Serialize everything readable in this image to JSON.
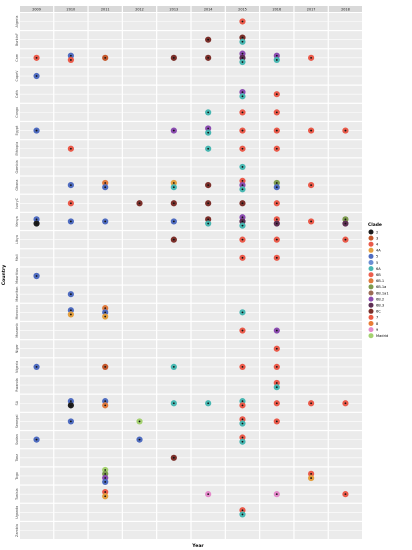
{
  "chart_data": {
    "type": "scatter",
    "layout": "faceted dot plot, one column per year, one row per country",
    "xlabel": "Year",
    "ylabel": "Country",
    "years": [
      "2009",
      "2010",
      "2011",
      "2012",
      "2013",
      "2014",
      "2015",
      "2016",
      "2017",
      "2018"
    ],
    "countries": [
      "Algeria",
      "BurkinF",
      "Cam",
      "CapeV",
      "Cath",
      "Congo",
      "Egypt",
      "Ethiopia",
      "Gambia",
      "Ghana",
      "IvoryC",
      "Kenya",
      "Libya",
      "Mali",
      "Mauritius",
      "Mauritan",
      "Morocco",
      "Mozamb",
      "Niger",
      "Nigeria",
      "Rwanda",
      "SA",
      "Senegal",
      "Sudan",
      "Tanz",
      "Togo",
      "Tunisia",
      "Uganda",
      "Zambia"
    ],
    "legend": {
      "title": "Clade",
      "position": "right",
      "entries": [
        {
          "label": "2",
          "color": "#1c1c1c"
        },
        {
          "label": "3",
          "color": "#c3572b"
        },
        {
          "label": "4",
          "color": "#ea5a4a"
        },
        {
          "label": "4A",
          "color": "#e4a03f"
        },
        {
          "label": "5",
          "color": "#4f6cc0"
        },
        {
          "label": "5",
          "color": "#6a8ed4"
        },
        {
          "label": "6A",
          "color": "#48b7b2"
        },
        {
          "label": "6B",
          "color": "#ec5f4e"
        },
        {
          "label": "6B.1",
          "color": "#e07a3d"
        },
        {
          "label": "6B.1a",
          "color": "#7d9b4f"
        },
        {
          "label": "6B.1a1",
          "color": "#9b6b54"
        },
        {
          "label": "6B.2",
          "color": "#8b4cb0"
        },
        {
          "label": "6B.3",
          "color": "#5d2e52"
        },
        {
          "label": "6C",
          "color": "#7b2f2a"
        },
        {
          "label": "7",
          "color": "#ed5b44"
        },
        {
          "label": "8",
          "color": "#e97d36"
        },
        {
          "label": "9",
          "color": "#e48aca"
        },
        {
          "label": "Madrid",
          "color": "#a4d170"
        }
      ]
    },
    "points": [
      {
        "country": "Algeria",
        "year": "2015",
        "clades": [
          "4"
        ]
      },
      {
        "country": "BurkinF",
        "year": "2014",
        "clades": [
          "6C"
        ]
      },
      {
        "country": "BurkinF",
        "year": "2015",
        "clades": [
          "6C",
          "6A"
        ]
      },
      {
        "country": "Cam",
        "year": "2010",
        "clades": [
          "5",
          "4"
        ]
      },
      {
        "country": "Cam",
        "year": "2011",
        "clades": [
          "3"
        ]
      },
      {
        "country": "Cam",
        "year": "2013",
        "clades": [
          "6C"
        ]
      },
      {
        "country": "Cam",
        "year": "2014",
        "clades": [
          "6C"
        ]
      },
      {
        "country": "Cam",
        "year": "2015",
        "clades": [
          "6B.2",
          "6B.3",
          "6A"
        ]
      },
      {
        "country": "Cam",
        "year": "2016",
        "clades": [
          "6B.2",
          "6A"
        ]
      },
      {
        "country": "Cam",
        "year": "2017",
        "clades": [
          "4"
        ]
      },
      {
        "country": "Cam",
        "year": "2009",
        "clades": [
          "4"
        ]
      },
      {
        "country": "CapeV",
        "year": "2009",
        "clades": [
          "5"
        ]
      },
      {
        "country": "Cath",
        "year": "2015",
        "clades": [
          "6B.2",
          "6A"
        ]
      },
      {
        "country": "Cath",
        "year": "2016",
        "clades": [
          "4"
        ]
      },
      {
        "country": "Congo",
        "year": "2014",
        "clades": [
          "6A"
        ]
      },
      {
        "country": "Congo",
        "year": "2015",
        "clades": [
          "4"
        ]
      },
      {
        "country": "Congo",
        "year": "2016",
        "clades": [
          "4"
        ]
      },
      {
        "country": "Egypt",
        "year": "2009",
        "clades": [
          "5"
        ]
      },
      {
        "country": "Egypt",
        "year": "2013",
        "clades": [
          "6B.2"
        ]
      },
      {
        "country": "Egypt",
        "year": "2014",
        "clades": [
          "6B.2",
          "6A"
        ]
      },
      {
        "country": "Egypt",
        "year": "2015",
        "clades": [
          "4"
        ]
      },
      {
        "country": "Egypt",
        "year": "2016",
        "clades": [
          "4"
        ]
      },
      {
        "country": "Egypt",
        "year": "2017",
        "clades": [
          "4"
        ]
      },
      {
        "country": "Egypt",
        "year": "2018",
        "clades": [
          "4"
        ]
      },
      {
        "country": "Ethiopia",
        "year": "2010",
        "clades": [
          "4"
        ]
      },
      {
        "country": "Ethiopia",
        "year": "2014",
        "clades": [
          "6A"
        ]
      },
      {
        "country": "Ethiopia",
        "year": "2015",
        "clades": [
          "4"
        ]
      },
      {
        "country": "Ethiopia",
        "year": "2016",
        "clades": [
          "4"
        ]
      },
      {
        "country": "Gambia",
        "year": "2015",
        "clades": [
          "6A"
        ]
      },
      {
        "country": "Ghana",
        "year": "2010",
        "clades": [
          "5"
        ]
      },
      {
        "country": "Ghana",
        "year": "2011",
        "clades": [
          "6B.1",
          "5"
        ]
      },
      {
        "country": "Ghana",
        "year": "2013",
        "clades": [
          "4A",
          "6A"
        ]
      },
      {
        "country": "Ghana",
        "year": "2014",
        "clades": [
          "6C"
        ]
      },
      {
        "country": "Ghana",
        "year": "2015",
        "clades": [
          "4",
          "6B.2",
          "6A"
        ]
      },
      {
        "country": "Ghana",
        "year": "2016",
        "clades": [
          "6B.1a",
          "5"
        ]
      },
      {
        "country": "Ghana",
        "year": "2017",
        "clades": [
          "4"
        ]
      },
      {
        "country": "IvoryC",
        "year": "2010",
        "clades": [
          "4"
        ]
      },
      {
        "country": "IvoryC",
        "year": "2012",
        "clades": [
          "6C"
        ]
      },
      {
        "country": "IvoryC",
        "year": "2013",
        "clades": [
          "6C"
        ]
      },
      {
        "country": "IvoryC",
        "year": "2014",
        "clades": [
          "6C"
        ]
      },
      {
        "country": "IvoryC",
        "year": "2015",
        "clades": [
          "6C"
        ]
      },
      {
        "country": "IvoryC",
        "year": "2016",
        "clades": [
          "4"
        ]
      },
      {
        "country": "Kenya",
        "year": "2009",
        "clades": [
          "5",
          "2"
        ]
      },
      {
        "country": "Kenya",
        "year": "2010",
        "clades": [
          "5"
        ]
      },
      {
        "country": "Kenya",
        "year": "2011",
        "clades": [
          "5"
        ]
      },
      {
        "country": "Kenya",
        "year": "2013",
        "clades": [
          "5"
        ]
      },
      {
        "country": "Kenya",
        "year": "2014",
        "clades": [
          "6C",
          "6A"
        ]
      },
      {
        "country": "Kenya",
        "year": "2015",
        "clades": [
          "6B.2",
          "6B.3",
          "6A"
        ]
      },
      {
        "country": "Kenya",
        "year": "2016",
        "clades": [
          "4",
          "6B.3"
        ]
      },
      {
        "country": "Kenya",
        "year": "2017",
        "clades": [
          "4"
        ]
      },
      {
        "country": "Kenya",
        "year": "2018",
        "clades": [
          "6B.1a",
          "6B.3"
        ]
      },
      {
        "country": "Libya",
        "year": "2013",
        "clades": [
          "6C"
        ]
      },
      {
        "country": "Libya",
        "year": "2015",
        "clades": [
          "4"
        ]
      },
      {
        "country": "Libya",
        "year": "2016",
        "clades": [
          "4"
        ]
      },
      {
        "country": "Libya",
        "year": "2018",
        "clades": [
          "4"
        ]
      },
      {
        "country": "Mali",
        "year": "2015",
        "clades": [
          "4"
        ]
      },
      {
        "country": "Mali",
        "year": "2016",
        "clades": [
          "4"
        ]
      },
      {
        "country": "Mauritius",
        "year": "2009",
        "clades": [
          "5"
        ]
      },
      {
        "country": "Mauritan",
        "year": "2010",
        "clades": [
          "5"
        ]
      },
      {
        "country": "Morocco",
        "year": "2010",
        "clades": [
          "5",
          "4A"
        ]
      },
      {
        "country": "Morocco",
        "year": "2011",
        "clades": [
          "6B.1",
          "5",
          "4A"
        ]
      },
      {
        "country": "Morocco",
        "year": "2015",
        "clades": [
          "6A"
        ]
      },
      {
        "country": "Mozamb",
        "year": "2015",
        "clades": [
          "4"
        ]
      },
      {
        "country": "Mozamb",
        "year": "2016",
        "clades": [
          "6B.2"
        ]
      },
      {
        "country": "Niger",
        "year": "2016",
        "clades": [
          "4"
        ]
      },
      {
        "country": "Nigeria",
        "year": "2009",
        "clades": [
          "5"
        ]
      },
      {
        "country": "Nigeria",
        "year": "2011",
        "clades": [
          "3"
        ]
      },
      {
        "country": "Nigeria",
        "year": "2013",
        "clades": [
          "6A"
        ]
      },
      {
        "country": "Nigeria",
        "year": "2015",
        "clades": [
          "4"
        ]
      },
      {
        "country": "Nigeria",
        "year": "2016",
        "clades": [
          "4"
        ]
      },
      {
        "country": "Mauritius",
        "year": "2009",
        "clades": [
          "5"
        ]
      },
      {
        "country": "Rwanda",
        "year": "2016",
        "clades": [
          "4",
          "6A"
        ]
      },
      {
        "country": "SA",
        "year": "2010",
        "clades": [
          "5",
          "2"
        ]
      },
      {
        "country": "SA",
        "year": "2011",
        "clades": [
          "5",
          "6B.1"
        ]
      },
      {
        "country": "SA",
        "year": "2013",
        "clades": [
          "6A"
        ]
      },
      {
        "country": "SA",
        "year": "2014",
        "clades": [
          "6A"
        ]
      },
      {
        "country": "SA",
        "year": "2015",
        "clades": [
          "6A",
          "4"
        ]
      },
      {
        "country": "SA",
        "year": "2016",
        "clades": [
          "4"
        ]
      },
      {
        "country": "SA",
        "year": "2017",
        "clades": [
          "4"
        ]
      },
      {
        "country": "SA",
        "year": "2018",
        "clades": [
          "4"
        ]
      },
      {
        "country": "Senegal",
        "year": "2010",
        "clades": [
          "5"
        ]
      },
      {
        "country": "Senegal",
        "year": "2012",
        "clades": [
          "Madrid"
        ]
      },
      {
        "country": "Senegal",
        "year": "2015",
        "clades": [
          "4",
          "6A"
        ]
      },
      {
        "country": "Senegal",
        "year": "2016",
        "clades": [
          "4"
        ]
      },
      {
        "country": "Sudan",
        "year": "2009",
        "clades": [
          "5"
        ]
      },
      {
        "country": "Sudan",
        "year": "2012",
        "clades": [
          "5"
        ]
      },
      {
        "country": "Sudan",
        "year": "2015",
        "clades": [
          "4",
          "6A"
        ]
      },
      {
        "country": "Tanz",
        "year": "2013",
        "clades": [
          "6C"
        ]
      },
      {
        "country": "Togo",
        "year": "2011",
        "clades": [
          "Madrid",
          "6B.1a",
          "6B.2",
          "5"
        ]
      },
      {
        "country": "Togo",
        "year": "2017",
        "clades": [
          "4",
          "4A"
        ]
      },
      {
        "country": "Tunisia",
        "year": "2011",
        "clades": [
          "4",
          "4A"
        ]
      },
      {
        "country": "Tunisia",
        "year": "2014",
        "clades": [
          "9"
        ]
      },
      {
        "country": "Tunisia",
        "year": "2016",
        "clades": [
          "9"
        ]
      },
      {
        "country": "Tunisia",
        "year": "2018",
        "clades": [
          "4"
        ]
      },
      {
        "country": "Uganda",
        "year": "2015",
        "clades": [
          "4",
          "6A"
        ]
      }
    ]
  }
}
